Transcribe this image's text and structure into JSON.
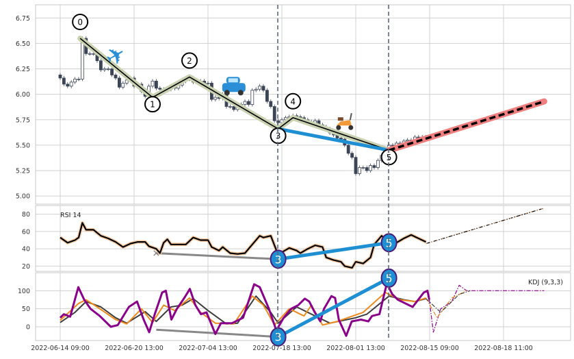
{
  "chart_data": [
    {
      "type": "candlestick",
      "panel": "price",
      "ylim": [
        4.92,
        6.88
      ],
      "yticks": [
        "5.00",
        "5.25",
        "5.50",
        "5.75",
        "6.00",
        "6.25",
        "6.50",
        "6.75"
      ],
      "grid": true,
      "closes": [
        6.16,
        6.1,
        6.08,
        6.12,
        6.15,
        6.15,
        6.55,
        6.4,
        6.4,
        6.4,
        6.33,
        6.24,
        6.25,
        6.25,
        6.19,
        6.16,
        6.07,
        6.11,
        6.14,
        6.16,
        6.08,
        6.1,
        6.03,
        5.98,
        6.08,
        6.13,
        6.06,
        6.05,
        6.04,
        6.05,
        6.07,
        6.06,
        6.09,
        6.13,
        6.15,
        6.16,
        6.12,
        6.13,
        6.13,
        6.11,
        6.11,
        5.95,
        5.97,
        5.96,
        6.0,
        5.88,
        5.88,
        5.85,
        5.88,
        5.9,
        5.93,
        5.9,
        6.04,
        6.05,
        6.08,
        6.04,
        5.93,
        5.88,
        5.74,
        5.72,
        5.75,
        5.77,
        5.78,
        5.79,
        5.78,
        5.77,
        5.75,
        5.73,
        5.72,
        5.74,
        5.7,
        5.68,
        5.66,
        5.62,
        5.6,
        5.57,
        5.56,
        5.5,
        5.42,
        5.38,
        5.22,
        5.28,
        5.28,
        5.25,
        5.3,
        5.28,
        5.35,
        5.4,
        5.44,
        5.5,
        5.47,
        5.52,
        5.52,
        5.54,
        5.55,
        5.53,
        5.58,
        5.56,
        5.58,
        5.57
      ],
      "zigzag": [
        {
          "label": "0",
          "x": 5.4,
          "y": 6.55,
          "pos": "above"
        },
        {
          "label": "1",
          "x": 25,
          "y": 5.97,
          "pos": "below"
        },
        {
          "label": "2",
          "x": 35,
          "y": 6.17,
          "pos": "above"
        },
        {
          "label": "3",
          "x": 59,
          "y": 5.66,
          "pos": "below"
        },
        {
          "label": "4",
          "x": 63,
          "y": 5.77,
          "pos": "above"
        },
        {
          "label": "5",
          "x": 89,
          "y": 5.45,
          "pos": "below"
        }
      ],
      "trend_line": {
        "from": [
          59,
          5.66
        ],
        "to": [
          89,
          5.45
        ],
        "color": "#1f8fd3"
      },
      "projection": {
        "from": [
          89,
          5.45
        ],
        "to": [
          131,
          5.93
        ],
        "color": "#f08080"
      },
      "icons": [
        {
          "name": "airplane-icon",
          "glyph": "✈",
          "x": 15,
          "y": 6.38,
          "color": "#2a8fd6"
        },
        {
          "name": "car-icon",
          "glyph": "car",
          "x": 47,
          "y": 6.07,
          "color": "#2a8fd6"
        },
        {
          "name": "scooter-icon",
          "glyph": "scooter",
          "x": 77,
          "y": 5.72,
          "color": "#f09a3a"
        }
      ]
    },
    {
      "type": "line",
      "panel": "rsi",
      "label": "RSI 14",
      "ylim": [
        14,
        90
      ],
      "yticks": [
        "20",
        "40",
        "60",
        "80"
      ],
      "series": [
        {
          "name": "RSI",
          "color": "#000000",
          "points": [
            [
              0,
              53
            ],
            [
              2,
              47
            ],
            [
              4,
              50
            ],
            [
              5,
              53
            ],
            [
              6,
              70
            ],
            [
              7,
              62
            ],
            [
              9,
              62
            ],
            [
              11,
              55
            ],
            [
              13,
              52
            ],
            [
              15,
              48
            ],
            [
              17,
              42
            ],
            [
              19,
              46
            ],
            [
              21,
              48
            ],
            [
              23,
              48
            ],
            [
              24,
              43
            ],
            [
              26,
              40
            ],
            [
              27,
              35
            ],
            [
              28,
              47
            ],
            [
              29,
              51
            ],
            [
              30,
              45
            ],
            [
              32,
              45
            ],
            [
              34,
              45
            ],
            [
              36,
              53
            ],
            [
              38,
              50
            ],
            [
              40,
              50
            ],
            [
              41,
              42
            ],
            [
              43,
              38
            ],
            [
              44,
              42
            ],
            [
              46,
              35
            ],
            [
              48,
              34
            ],
            [
              50,
              35
            ],
            [
              52,
              45
            ],
            [
              54,
              55
            ],
            [
              55,
              53
            ],
            [
              57,
              55
            ],
            [
              59,
              33
            ],
            [
              60,
              36
            ],
            [
              62,
              41
            ],
            [
              64,
              38
            ],
            [
              65,
              35
            ],
            [
              67,
              40
            ],
            [
              69,
              44
            ],
            [
              71,
              42
            ],
            [
              72,
              30
            ],
            [
              74,
              27
            ],
            [
              76,
              25
            ],
            [
              77,
              20
            ],
            [
              79,
              18
            ],
            [
              80,
              25
            ],
            [
              82,
              23
            ],
            [
              84,
              30
            ],
            [
              85,
              45
            ],
            [
              87,
              55
            ],
            [
              89,
              47
            ],
            [
              91,
              47
            ],
            [
              93,
              52
            ],
            [
              95,
              56
            ],
            [
              97,
              52
            ],
            [
              99,
              48
            ]
          ]
        },
        {
          "name": "RSI projection",
          "color": "#000000",
          "dash": true,
          "points": [
            [
              99,
              46
            ],
            [
              131,
              87
            ]
          ]
        }
      ],
      "divergence": {
        "grey": [
          [
            26,
            35
          ],
          [
            59,
            28
          ]
        ],
        "blue": [
          [
            59,
            28
          ],
          [
            89,
            47
          ]
        ],
        "markers": [
          {
            "label": "3",
            "x": 59,
            "y": 28
          },
          {
            "label": "5",
            "x": 89,
            "y": 47
          }
        ],
        "star": [
          26,
          35
        ]
      }
    },
    {
      "type": "line",
      "panel": "kdj",
      "label": "KDJ (9,3,3)",
      "ylim": [
        -38,
        150
      ],
      "yticks": [
        "0",
        "50",
        "100"
      ],
      "series": [
        {
          "name": "D",
          "color": "#3d3d3d",
          "points": [
            [
              0,
              12
            ],
            [
              4,
              40
            ],
            [
              7,
              70
            ],
            [
              11,
              55
            ],
            [
              15,
              25
            ],
            [
              18,
              10
            ],
            [
              23,
              42
            ],
            [
              26,
              15
            ],
            [
              30,
              55
            ],
            [
              33,
              60
            ],
            [
              36,
              78
            ],
            [
              40,
              45
            ],
            [
              45,
              8
            ],
            [
              48,
              10
            ],
            [
              53,
              85
            ],
            [
              57,
              40
            ],
            [
              59,
              10
            ],
            [
              64,
              55
            ],
            [
              69,
              30
            ],
            [
              73,
              10
            ],
            [
              80,
              25
            ],
            [
              83,
              35
            ],
            [
              89,
              85
            ],
            [
              93,
              75
            ],
            [
              96,
              70
            ],
            [
              99,
              78
            ]
          ]
        },
        {
          "name": "K",
          "color": "#f08a1c",
          "points": [
            [
              0,
              18
            ],
            [
              5,
              65
            ],
            [
              7,
              75
            ],
            [
              10,
              55
            ],
            [
              15,
              20
            ],
            [
              18,
              8
            ],
            [
              22,
              50
            ],
            [
              25,
              12
            ],
            [
              28,
              60
            ],
            [
              31,
              45
            ],
            [
              35,
              80
            ],
            [
              38,
              40
            ],
            [
              42,
              10
            ],
            [
              47,
              8
            ],
            [
              52,
              85
            ],
            [
              55,
              60
            ],
            [
              58,
              5
            ],
            [
              62,
              50
            ],
            [
              66,
              30
            ],
            [
              68,
              60
            ],
            [
              71,
              5
            ],
            [
              75,
              15
            ],
            [
              82,
              40
            ],
            [
              88,
              95
            ],
            [
              92,
              75
            ],
            [
              96,
              70
            ],
            [
              99,
              80
            ]
          ]
        },
        {
          "name": "J",
          "color": "#8b008b",
          "points": [
            [
              0,
              25
            ],
            [
              1,
              35
            ],
            [
              2.7,
              28
            ],
            [
              4.9,
              110
            ],
            [
              6.5,
              75
            ],
            [
              8.2,
              50
            ],
            [
              10.7,
              30
            ],
            [
              13.7,
              0
            ],
            [
              15.6,
              5
            ],
            [
              18.6,
              55
            ],
            [
              20.8,
              70
            ],
            [
              22.6,
              20
            ],
            [
              24.1,
              -15
            ],
            [
              25.6,
              35
            ],
            [
              27.6,
              95
            ],
            [
              28.6,
              100
            ],
            [
              30.1,
              20
            ],
            [
              31.6,
              50
            ],
            [
              33.6,
              80
            ],
            [
              35.1,
              105
            ],
            [
              36.6,
              60
            ],
            [
              38.1,
              35
            ],
            [
              39.6,
              40
            ],
            [
              42,
              -20
            ],
            [
              43.5,
              10
            ],
            [
              46.5,
              10
            ],
            [
              49.5,
              25
            ],
            [
              52.5,
              118
            ],
            [
              54,
              110
            ],
            [
              56.5,
              50
            ],
            [
              58.5,
              -10
            ],
            [
              60.5,
              25
            ],
            [
              62.5,
              50
            ],
            [
              64.4,
              60
            ],
            [
              66.2,
              78
            ],
            [
              67.4,
              70
            ],
            [
              68.9,
              40
            ],
            [
              70.4,
              15
            ],
            [
              71.4,
              50
            ],
            [
              73.4,
              85
            ],
            [
              74.4,
              80
            ],
            [
              75.4,
              20
            ],
            [
              77.4,
              -25
            ],
            [
              78.9,
              15
            ],
            [
              81.4,
              20
            ],
            [
              83.4,
              15
            ],
            [
              84.4,
              30
            ],
            [
              86.4,
              35
            ],
            [
              88.4,
              120
            ],
            [
              89.9,
              90
            ],
            [
              91.4,
              75
            ],
            [
              93.4,
              65
            ],
            [
              95.4,
              55
            ],
            [
              96.9,
              75
            ],
            [
              98.4,
              95
            ],
            [
              99.4,
              100
            ],
            [
              99.9,
              75
            ]
          ]
        },
        {
          "name": "J projection",
          "color": "#8b008b",
          "dash": true,
          "points": [
            [
              99.9,
              75
            ],
            [
              101,
              -15
            ],
            [
              103,
              50
            ],
            [
              106,
              70
            ],
            [
              108,
              115
            ],
            [
              110,
              100
            ],
            [
              131,
              100
            ]
          ]
        },
        {
          "name": "K projection",
          "color": "#f08a1c",
          "dash": true,
          "points": [
            [
              99,
              80
            ],
            [
              102,
              25
            ],
            [
              106,
              80
            ],
            [
              110,
              100
            ]
          ]
        },
        {
          "name": "D projection",
          "color": "#3d3d3d",
          "dash": true,
          "points": [
            [
              99,
              78
            ],
            [
              103,
              40
            ],
            [
              108,
              90
            ],
            [
              111,
              100
            ]
          ]
        }
      ],
      "divergence": {
        "grey": [
          [
            26,
            -8
          ],
          [
            59,
            -28
          ]
        ],
        "blue": [
          [
            59,
            -28
          ],
          [
            89,
            135
          ]
        ],
        "markers": [
          {
            "label": "3",
            "x": 59,
            "y": -28
          },
          {
            "label": "5",
            "x": 89,
            "y": 135
          }
        ]
      }
    }
  ],
  "xaxis": {
    "ticks": [
      {
        "x": 0,
        "label": "2022-06-14 09:00"
      },
      {
        "x": 20,
        "label": "2022-06-20 13:00"
      },
      {
        "x": 40,
        "label": "2022-07-04 13:00"
      },
      {
        "x": 60,
        "label": "2022-07-18 13:00"
      },
      {
        "x": 80,
        "label": "2022-08-01 13:00"
      },
      {
        "x": 100,
        "label": "2022-08-15 09:00"
      },
      {
        "x": 120,
        "label": "2022-08-18 11:00"
      }
    ],
    "vlines": [
      59,
      89
    ]
  }
}
